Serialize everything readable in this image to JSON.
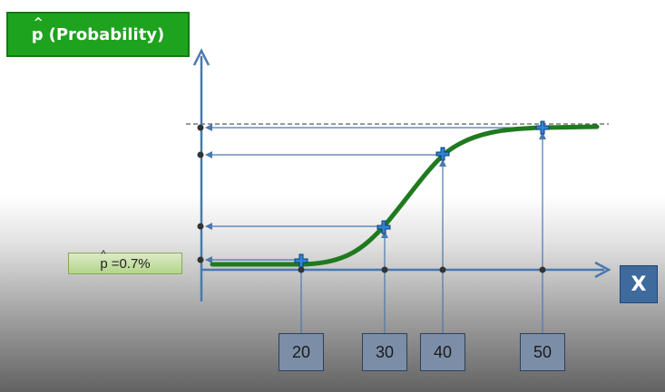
{
  "title": {
    "symbol": "p",
    "hat": "^",
    "text": "(Probability)"
  },
  "p_hat_label": {
    "symbol": "p",
    "hat": "^",
    "text": "=0.7%"
  },
  "x_axis_label": "X",
  "x_values": [
    "20",
    "30",
    "40",
    "50"
  ],
  "colors": {
    "curve": "#1f7a1f",
    "axis": "#4a78b0",
    "markers": "#2f83d6",
    "title_bg": "#1ea31e",
    "x_box": "#3e6a9e",
    "value_box": "#7c8ea7"
  }
}
